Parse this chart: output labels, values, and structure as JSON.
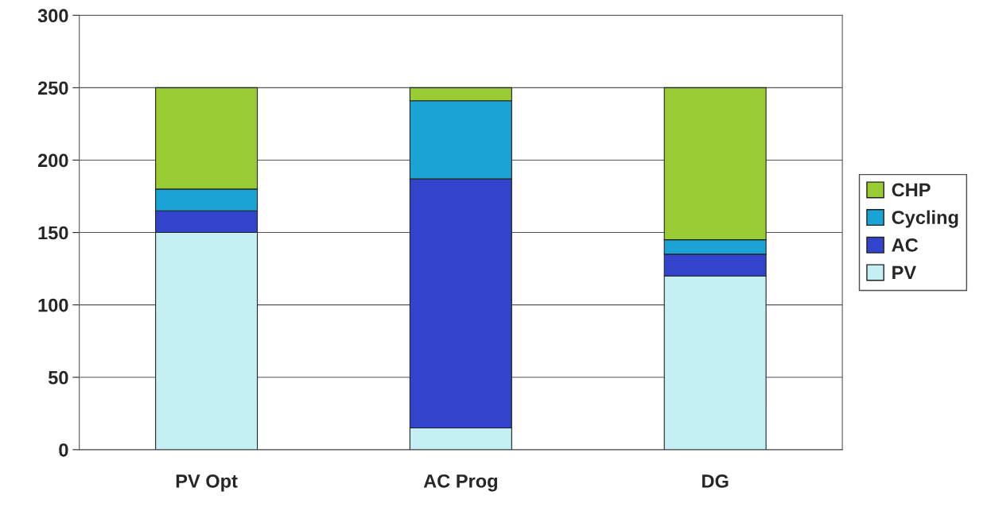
{
  "chart_data": {
    "type": "bar",
    "stacked": true,
    "categories": [
      "PV Opt",
      "AC Prog",
      "DG"
    ],
    "series": [
      {
        "name": "PV",
        "color": "#c4eff3",
        "values": [
          150,
          15,
          120
        ]
      },
      {
        "name": "AC",
        "color": "#3344cc",
        "values": [
          15,
          172,
          15
        ]
      },
      {
        "name": "Cycling",
        "color": "#1ba3d6",
        "values": [
          15,
          54,
          10
        ]
      },
      {
        "name": "CHP",
        "color": "#99cc33",
        "values": [
          70,
          9,
          105
        ]
      }
    ],
    "ylim": [
      0,
      300
    ],
    "yticks": [
      0,
      50,
      100,
      150,
      200,
      250,
      300
    ],
    "grid": "y",
    "legend": "right"
  }
}
